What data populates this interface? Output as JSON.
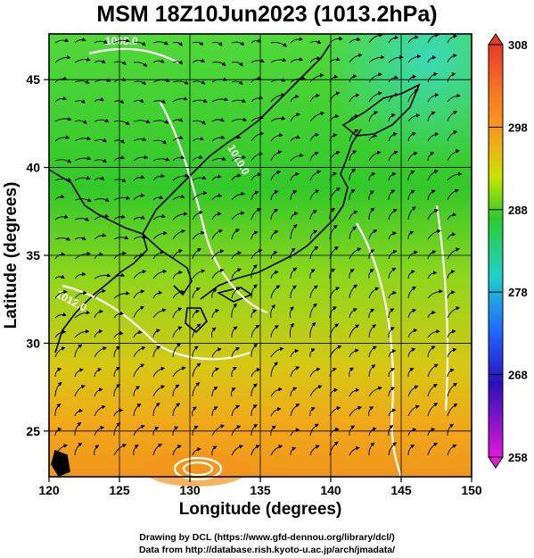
{
  "title": "MSM 18Z10Jun2023 (1013.2hPa)",
  "xlabel": "Longitude (degrees)",
  "ylabel": "Latitude  (degrees)",
  "x_ticks": [
    "120",
    "125",
    "130",
    "135",
    "140",
    "145",
    "150"
  ],
  "y_ticks": [
    "25",
    "30",
    "35",
    "40",
    "45"
  ],
  "colorbar": {
    "ticks": [
      "308",
      "298",
      "288",
      "278",
      "268",
      "258"
    ],
    "colors": [
      "#e83a2a",
      "#f7a01c",
      "#c8e400",
      "#1fc81f",
      "#1fd2c8",
      "#2064ff",
      "#2a10b8",
      "#e018d8"
    ]
  },
  "contour_labels": [
    "1008.0",
    "1012.0",
    "1010.0"
  ],
  "credits": {
    "line1": "Drawing by DCL (https://www.gfd-dennou.org/library/dcl/)",
    "line2": "Data from http://database.rish.kyoto-u.ac.jp/arch/jmadata/"
  },
  "chart_data": {
    "type": "heatmap",
    "title": "MSM 18Z10Jun2023 (1013.2hPa)",
    "xlabel": "Longitude (degrees)",
    "ylabel": "Latitude  (degrees)",
    "xlim": [
      120,
      150
    ],
    "ylim": [
      22.4,
      47.6
    ],
    "x_ticks": [
      120,
      125,
      130,
      135,
      140,
      145,
      150
    ],
    "y_ticks": [
      25,
      30,
      35,
      40,
      45
    ],
    "color_scale": {
      "min": 258,
      "max": 308,
      "ticks": [
        308,
        298,
        288,
        278,
        268,
        258
      ]
    },
    "overlays": [
      "streamlines",
      "isobars"
    ],
    "isobar_labels": [
      "1008.0",
      "1012.0",
      "1010.0"
    ],
    "grid": true
  }
}
